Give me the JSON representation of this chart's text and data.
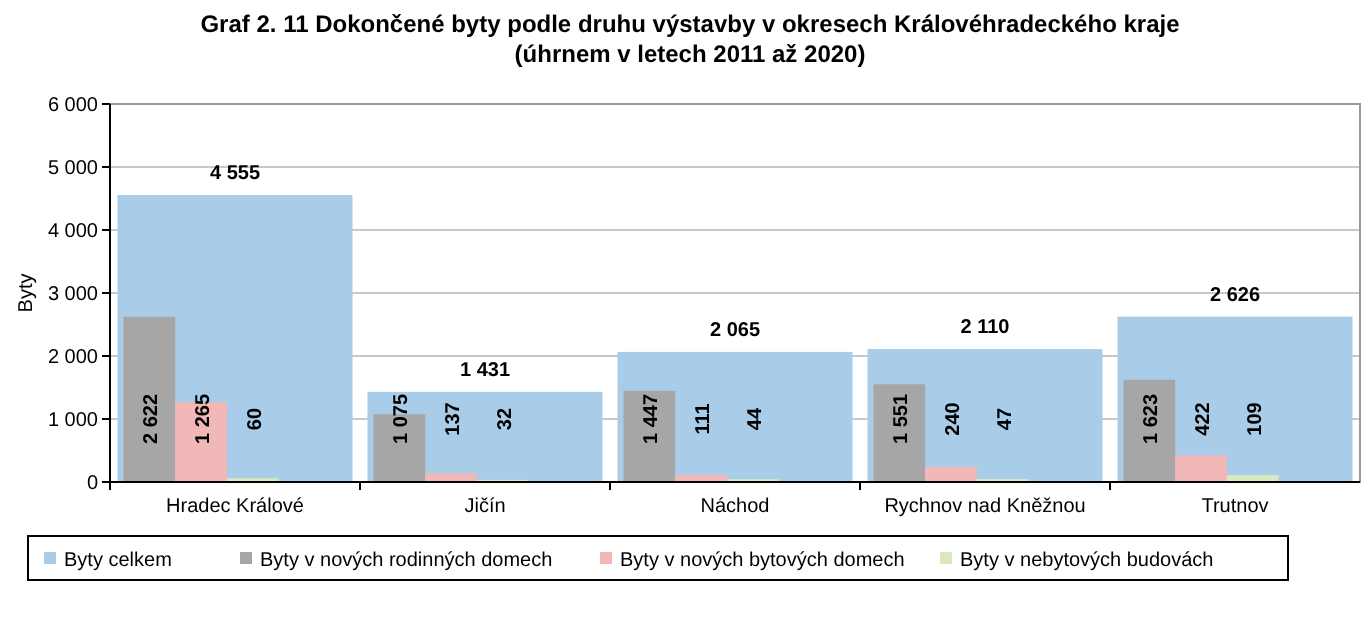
{
  "chart_data": {
    "type": "bar",
    "title": "Graf 2. 11 Dokončené byty podle druhu výstavby v okresech Královéhradeckého kraje",
    "subtitle": "(úhrnem v letech 2011 až 2020)",
    "ylabel": "Byty",
    "categories": [
      "Hradec Králové",
      "Jičín",
      "Náchod",
      "Rychnov nad Kněžnou",
      "Trutnov"
    ],
    "series": [
      {
        "name": "Byty celkem",
        "color": "#a9cde9",
        "values": [
          4555,
          1431,
          2065,
          2110,
          2626
        ],
        "value_labels": [
          "4 555",
          "1 431",
          "2 065",
          "2 110",
          "2 626"
        ]
      },
      {
        "name": "Byty v nových rodinných domech",
        "color": "#a6a6a6",
        "values": [
          2622,
          1075,
          1447,
          1551,
          1623
        ],
        "value_labels": [
          "2 622",
          "1 075",
          "1 447",
          "1 551",
          "1 623"
        ]
      },
      {
        "name": "Byty v nových bytových domech",
        "color": "#f2b7b7",
        "values": [
          1265,
          137,
          111,
          240,
          422
        ],
        "value_labels": [
          "1 265",
          "137",
          "111",
          "240",
          "422"
        ]
      },
      {
        "name": "Byty v nebytových budovách",
        "color": "#d7e9bd",
        "values": [
          60,
          32,
          44,
          47,
          109
        ],
        "value_labels": [
          "60",
          "32",
          "44",
          "47",
          "109"
        ]
      }
    ],
    "ylim": [
      0,
      6000
    ],
    "yticks": [
      0,
      {
        "value": 1000,
        "label": "1 000"
      },
      {
        "value": 2000,
        "label": "2 000"
      },
      {
        "value": 3000,
        "label": "3 000"
      },
      {
        "value": 4000,
        "label": "4 000"
      },
      {
        "value": 5000,
        "label": "5 000"
      },
      {
        "value": 6000,
        "label": "6 000"
      }
    ],
    "grid": "y",
    "legend": "bottom"
  }
}
